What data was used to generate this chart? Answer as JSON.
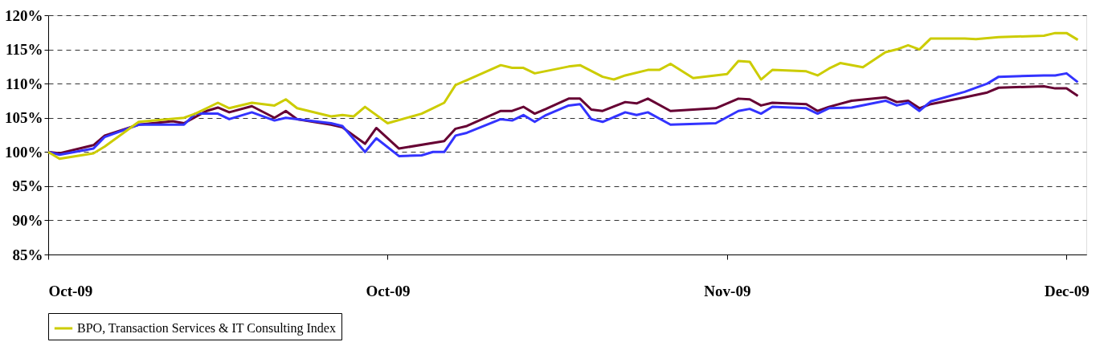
{
  "chart_data": {
    "type": "line",
    "xlim": [
      "2009-10-01",
      "2009-12-31T18:00"
    ],
    "xticks": [
      {
        "value": "2009-10-01",
        "label": "Oct-09"
      },
      {
        "value": "2009-10-31",
        "label": "Oct-09"
      },
      {
        "value": "2009-11-30",
        "label": "Nov-09"
      },
      {
        "value": "2009-12-30",
        "label": "Dec-09"
      }
    ],
    "ylim": [
      85,
      120
    ],
    "yticks": [
      {
        "value": 85,
        "label": "85%"
      },
      {
        "value": 90,
        "label": "90%"
      },
      {
        "value": 95,
        "label": "95%"
      },
      {
        "value": 100,
        "label": "100%"
      },
      {
        "value": 105,
        "label": "105%"
      },
      {
        "value": 110,
        "label": "110%"
      },
      {
        "value": 115,
        "label": "115%"
      },
      {
        "value": 120,
        "label": "120%"
      }
    ],
    "grid": "y",
    "legend": "bottom",
    "series": [
      {
        "color": "#660033",
        "x": [
          "2009-10-01",
          "2009-10-02",
          "2009-10-05",
          "2009-10-06",
          "2009-10-09",
          "2009-10-12",
          "2009-10-13",
          "2009-10-15",
          "2009-10-16",
          "2009-10-17",
          "2009-10-19",
          "2009-10-21",
          "2009-10-22",
          "2009-10-23",
          "2009-10-26",
          "2009-10-27",
          "2009-10-29",
          "2009-10-30",
          "2009-11-01",
          "2009-11-05",
          "2009-11-06",
          "2009-11-07",
          "2009-11-10",
          "2009-11-11",
          "2009-11-12",
          "2009-11-13",
          "2009-11-14",
          "2009-11-16",
          "2009-11-17",
          "2009-11-18",
          "2009-11-19",
          "2009-11-21",
          "2009-11-22",
          "2009-11-23",
          "2009-11-25",
          "2009-11-29",
          "2009-12-01",
          "2009-12-02",
          "2009-12-03",
          "2009-12-04",
          "2009-12-07",
          "2009-12-08",
          "2009-12-09",
          "2009-12-11",
          "2009-12-14",
          "2009-12-15",
          "2009-12-16",
          "2009-12-17",
          "2009-12-18",
          "2009-12-21",
          "2009-12-23",
          "2009-12-24",
          "2009-12-28",
          "2009-12-29",
          "2009-12-30",
          "2009-12-31"
        ],
        "values": [
          100,
          99.8,
          101,
          102.4,
          104,
          104.5,
          104.2,
          106,
          106.5,
          105.8,
          106.7,
          105,
          106,
          104.8,
          104,
          103.6,
          101.2,
          103.5,
          100.5,
          101.6,
          103.4,
          103.8,
          106,
          106,
          106.6,
          105.6,
          106.3,
          107.8,
          107.8,
          106.2,
          106,
          107.3,
          107.1,
          107.8,
          106,
          106.4,
          107.8,
          107.7,
          106.8,
          107.2,
          107,
          106,
          106.6,
          107.5,
          108,
          107.3,
          107.5,
          106.4,
          107,
          108,
          108.7,
          109.4,
          109.6,
          109.3,
          109.3,
          108.2
        ]
      },
      {
        "color": "#3333ff",
        "x": [
          "2009-10-01",
          "2009-10-02",
          "2009-10-05",
          "2009-10-06",
          "2009-10-09",
          "2009-10-13",
          "2009-10-14",
          "2009-10-16",
          "2009-10-17",
          "2009-10-19",
          "2009-10-21",
          "2009-10-22",
          "2009-10-26",
          "2009-10-27",
          "2009-10-29",
          "2009-10-30",
          "2009-11-01",
          "2009-11-03",
          "2009-11-04",
          "2009-11-05",
          "2009-11-06",
          "2009-11-07",
          "2009-11-10",
          "2009-11-11",
          "2009-11-12",
          "2009-11-13",
          "2009-11-14",
          "2009-11-16",
          "2009-11-17",
          "2009-11-18",
          "2009-11-19",
          "2009-11-21",
          "2009-11-22",
          "2009-11-23",
          "2009-11-25",
          "2009-11-29",
          "2009-12-01",
          "2009-12-02",
          "2009-12-03",
          "2009-12-04",
          "2009-12-07",
          "2009-12-08",
          "2009-12-09",
          "2009-12-11",
          "2009-12-14",
          "2009-12-15",
          "2009-12-16",
          "2009-12-17",
          "2009-12-18",
          "2009-12-21",
          "2009-12-23",
          "2009-12-24",
          "2009-12-28",
          "2009-12-29",
          "2009-12-30",
          "2009-12-31"
        ],
        "values": [
          100,
          99.6,
          100.5,
          102.2,
          104,
          104,
          105.6,
          105.6,
          104.8,
          105.8,
          104.6,
          105,
          104.2,
          103.8,
          100,
          102,
          99.4,
          99.5,
          100,
          100,
          102.4,
          102.8,
          104.8,
          104.6,
          105.4,
          104.4,
          105.4,
          106.8,
          107,
          104.8,
          104.4,
          105.8,
          105.4,
          105.8,
          104,
          104.2,
          106,
          106.3,
          105.6,
          106.6,
          106.4,
          105.6,
          106.4,
          106.5,
          107.5,
          106.8,
          107.2,
          106,
          107.4,
          108.8,
          110,
          111,
          111.2,
          111.2,
          111.5,
          110.2
        ]
      },
      {
        "name": "BPO, Transaction Services & IT Consulting Index",
        "color": "#cccc00",
        "x": [
          "2009-10-01",
          "2009-10-02",
          "2009-10-05",
          "2009-10-06",
          "2009-10-09",
          "2009-10-13",
          "2009-10-14",
          "2009-10-16",
          "2009-10-17",
          "2009-10-19",
          "2009-10-21",
          "2009-10-22",
          "2009-10-23",
          "2009-10-26",
          "2009-10-27",
          "2009-10-28",
          "2009-10-29",
          "2009-10-31",
          "2009-11-03",
          "2009-11-04",
          "2009-11-05",
          "2009-11-06",
          "2009-11-07",
          "2009-11-10",
          "2009-11-11",
          "2009-11-12",
          "2009-11-13",
          "2009-11-16",
          "2009-11-17",
          "2009-11-19",
          "2009-11-20",
          "2009-11-21",
          "2009-11-23",
          "2009-11-24",
          "2009-11-25",
          "2009-11-27",
          "2009-11-30",
          "2009-12-01",
          "2009-12-02",
          "2009-12-03",
          "2009-12-04",
          "2009-12-07",
          "2009-12-08",
          "2009-12-09",
          "2009-12-10",
          "2009-12-12",
          "2009-12-14",
          "2009-12-15",
          "2009-12-16",
          "2009-12-17",
          "2009-12-18",
          "2009-12-21",
          "2009-12-22",
          "2009-12-24",
          "2009-12-28",
          "2009-12-29",
          "2009-12-30",
          "2009-12-31"
        ],
        "values": [
          100,
          99,
          99.8,
          100.8,
          104.4,
          105,
          105.6,
          107.2,
          106.4,
          107.2,
          106.8,
          107.7,
          106.4,
          105.2,
          105.4,
          105.2,
          106.6,
          104.2,
          105.6,
          106.4,
          107.2,
          109.8,
          110.5,
          112.7,
          112.3,
          112.3,
          111.5,
          112.5,
          112.7,
          111,
          110.6,
          111.2,
          112,
          112,
          112.9,
          110.8,
          111.4,
          113.3,
          113.2,
          110.6,
          112,
          111.8,
          111.2,
          112.2,
          113,
          112.4,
          114.6,
          115,
          115.6,
          115,
          116.6,
          116.6,
          116.5,
          116.8,
          117,
          117.4,
          117.4,
          116.4
        ]
      }
    ]
  }
}
